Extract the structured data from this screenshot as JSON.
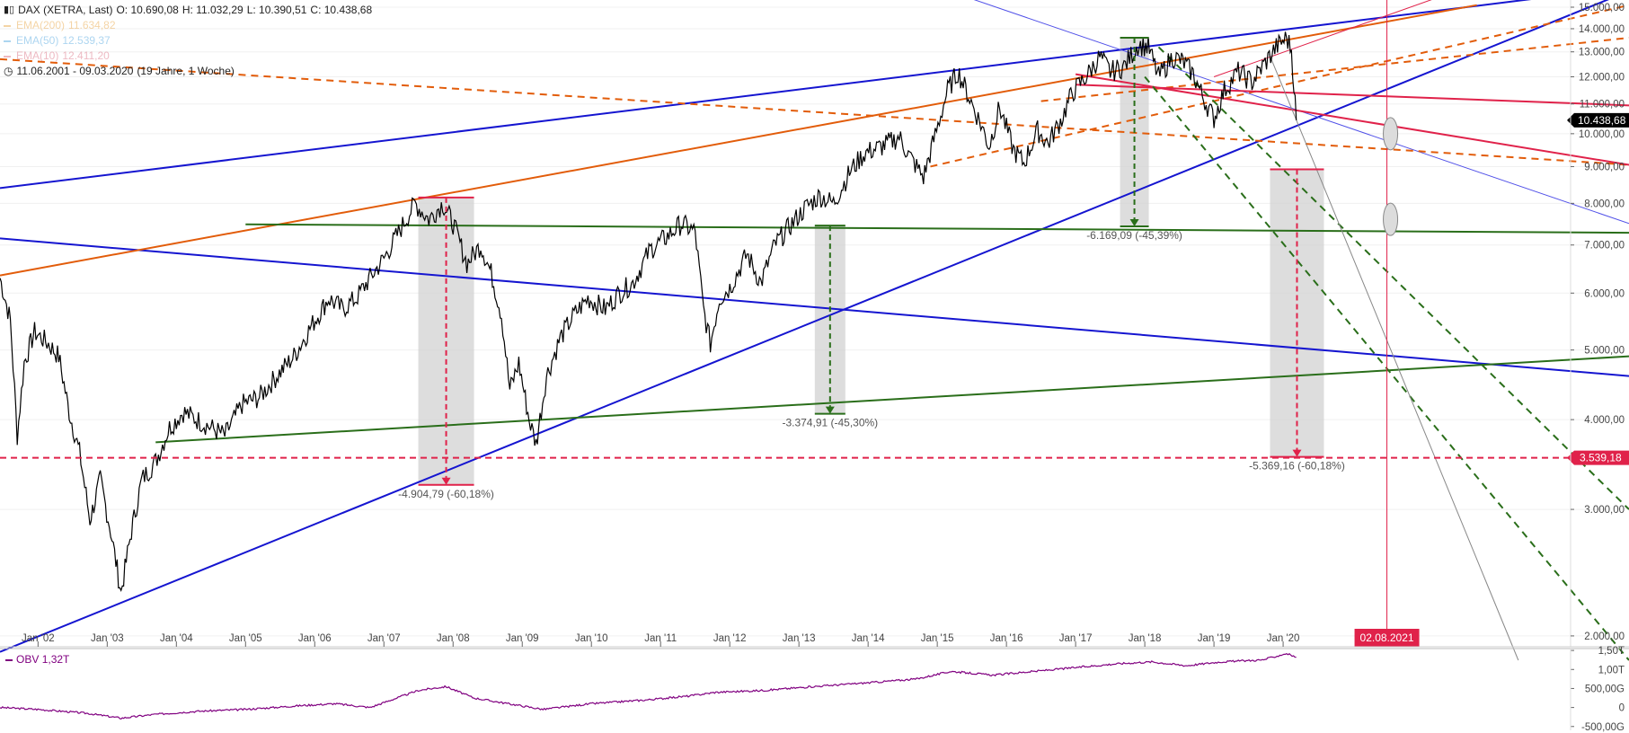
{
  "header": {
    "symbol": "DAX (XETRA, Last)",
    "open": "O: 10.690,08",
    "high": "H: 11.032,29",
    "low": "L: 10.390,51",
    "close": "C: 10.438,68",
    "legend": [
      {
        "label": "EMA(200)",
        "value": "11.634,82",
        "color": "#e8a13a"
      },
      {
        "label": "EMA(50)",
        "value": "12.539,37",
        "color": "#4aa3df"
      },
      {
        "label": "EMA(10)",
        "value": "12.411,20",
        "color": "#d9667a"
      }
    ],
    "range": "11.06.2001 - 09.03.2020",
    "range_detail": "(19 Jahre, 1 Woche)"
  },
  "chart_data": {
    "type": "line",
    "title": "DAX (XETRA, Last)",
    "y_scale": "log",
    "ylim": [
      1850,
      15000
    ],
    "x_range": [
      "2001-06-11",
      "2020-03-09"
    ],
    "x_ticks": [
      "Jan '02",
      "Jan '03",
      "Jan '04",
      "Jan '05",
      "Jan '06",
      "Jan '07",
      "Jan '08",
      "Jan '09",
      "Jan '10",
      "Jan '11",
      "Jan '12",
      "Jan '13",
      "Jan '14",
      "Jan '15",
      "Jan '16",
      "Jan '17",
      "Jan '18",
      "Jan '19",
      "Jan '20"
    ],
    "y_ticks": [
      {
        "v": 15000,
        "label": "15.000,00"
      },
      {
        "v": 14000,
        "label": "14.000,00"
      },
      {
        "v": 13000,
        "label": "13.000,00"
      },
      {
        "v": 12000,
        "label": "12.000,00"
      },
      {
        "v": 11000,
        "label": "11.000,00"
      },
      {
        "v": 10000,
        "label": "10.000,00"
      },
      {
        "v": 9000,
        "label": "9.000,00"
      },
      {
        "v": 8000,
        "label": "8.000,00"
      },
      {
        "v": 7000,
        "label": "7.000,00"
      },
      {
        "v": 6000,
        "label": "6.000,00"
      },
      {
        "v": 5000,
        "label": "5.000,00"
      },
      {
        "v": 4000,
        "label": "4.000,00"
      },
      {
        "v": 3000,
        "label": "3.000,00"
      },
      {
        "v": 2000,
        "label": "2.000,00"
      }
    ],
    "series": [
      {
        "name": "DAX (XETRA, Last)",
        "color": "#000000",
        "points": [
          [
            2001.45,
            6300
          ],
          [
            2001.6,
            5500
          ],
          [
            2001.7,
            3800
          ],
          [
            2001.8,
            4800
          ],
          [
            2001.95,
            5300
          ],
          [
            2002.15,
            5100
          ],
          [
            2002.3,
            4900
          ],
          [
            2002.45,
            4100
          ],
          [
            2002.6,
            3600
          ],
          [
            2002.75,
            2900
          ],
          [
            2002.9,
            3300
          ],
          [
            2003.05,
            2800
          ],
          [
            2003.2,
            2300
          ],
          [
            2003.35,
            2800
          ],
          [
            2003.5,
            3300
          ],
          [
            2003.7,
            3500
          ],
          [
            2003.9,
            3900
          ],
          [
            2004.1,
            4100
          ],
          [
            2004.3,
            4000
          ],
          [
            2004.5,
            3900
          ],
          [
            2004.7,
            3800
          ],
          [
            2004.95,
            4200
          ],
          [
            2005.2,
            4300
          ],
          [
            2005.45,
            4600
          ],
          [
            2005.7,
            4900
          ],
          [
            2005.95,
            5400
          ],
          [
            2006.2,
            5900
          ],
          [
            2006.4,
            5700
          ],
          [
            2006.6,
            5900
          ],
          [
            2006.8,
            6300
          ],
          [
            2007.0,
            6700
          ],
          [
            2007.25,
            7400
          ],
          [
            2007.45,
            8000
          ],
          [
            2007.65,
            7600
          ],
          [
            2007.85,
            8000
          ],
          [
            2008.0,
            7500
          ],
          [
            2008.2,
            6600
          ],
          [
            2008.4,
            7000
          ],
          [
            2008.55,
            6400
          ],
          [
            2008.7,
            5600
          ],
          [
            2008.82,
            4400
          ],
          [
            2008.95,
            4800
          ],
          [
            2009.1,
            4000
          ],
          [
            2009.2,
            3700
          ],
          [
            2009.35,
            4600
          ],
          [
            2009.55,
            5200
          ],
          [
            2009.75,
            5600
          ],
          [
            2009.95,
            5900
          ],
          [
            2010.2,
            5700
          ],
          [
            2010.4,
            6000
          ],
          [
            2010.6,
            6200
          ],
          [
            2010.85,
            6900
          ],
          [
            2011.1,
            7200
          ],
          [
            2011.3,
            7500
          ],
          [
            2011.5,
            7300
          ],
          [
            2011.62,
            5700
          ],
          [
            2011.72,
            5100
          ],
          [
            2011.85,
            5900
          ],
          [
            2012.0,
            6100
          ],
          [
            2012.25,
            6800
          ],
          [
            2012.45,
            6200
          ],
          [
            2012.65,
            7000
          ],
          [
            2012.9,
            7500
          ],
          [
            2013.1,
            7900
          ],
          [
            2013.3,
            8200
          ],
          [
            2013.5,
            8000
          ],
          [
            2013.75,
            8900
          ],
          [
            2013.95,
            9400
          ],
          [
            2014.2,
            9600
          ],
          [
            2014.45,
            9900
          ],
          [
            2014.6,
            9300
          ],
          [
            2014.8,
            8700
          ],
          [
            2014.95,
            9800
          ],
          [
            2015.15,
            11500
          ],
          [
            2015.3,
            12200
          ],
          [
            2015.45,
            11300
          ],
          [
            2015.65,
            10200
          ],
          [
            2015.75,
            9600
          ],
          [
            2015.9,
            10900
          ],
          [
            2016.1,
            9500
          ],
          [
            2016.25,
            9100
          ],
          [
            2016.45,
            10100
          ],
          [
            2016.6,
            9700
          ],
          [
            2016.8,
            10500
          ],
          [
            2016.95,
            11400
          ],
          [
            2017.15,
            12000
          ],
          [
            2017.35,
            12800
          ],
          [
            2017.5,
            12200
          ],
          [
            2017.7,
            12400
          ],
          [
            2017.9,
            13300
          ],
          [
            2018.05,
            13200
          ],
          [
            2018.2,
            12000
          ],
          [
            2018.4,
            12800
          ],
          [
            2018.55,
            12600
          ],
          [
            2018.7,
            12100
          ],
          [
            2018.85,
            11200
          ],
          [
            2019.0,
            10500
          ],
          [
            2019.15,
            11500
          ],
          [
            2019.35,
            12200
          ],
          [
            2019.55,
            11800
          ],
          [
            2019.7,
            12400
          ],
          [
            2019.9,
            13200
          ],
          [
            2020.05,
            13600
          ],
          [
            2020.12,
            13100
          ],
          [
            2020.19,
            10438.68
          ]
        ]
      },
      {
        "name": "OBV",
        "color": "#800080",
        "last_label": "1,32T",
        "y_ticks": [
          {
            "v": 1.5,
            "label": "1,50T"
          },
          {
            "v": 1.0,
            "label": "1,00T"
          },
          {
            "v": 0.5,
            "label": "500,00G"
          },
          {
            "v": 0.0,
            "label": "0"
          },
          {
            "v": -0.5,
            "label": "-500,00G"
          }
        ],
        "points": [
          [
            2001.45,
            0.0
          ],
          [
            2002.0,
            -0.05
          ],
          [
            2002.7,
            -0.15
          ],
          [
            2003.2,
            -0.28
          ],
          [
            2003.7,
            -0.18
          ],
          [
            2004.3,
            -0.1
          ],
          [
            2005.0,
            -0.05
          ],
          [
            2005.8,
            0.05
          ],
          [
            2006.3,
            0.1
          ],
          [
            2006.8,
            0.0
          ],
          [
            2007.5,
            0.45
          ],
          [
            2007.9,
            0.55
          ],
          [
            2008.3,
            0.25
          ],
          [
            2008.8,
            0.1
          ],
          [
            2009.3,
            -0.05
          ],
          [
            2010.0,
            0.1
          ],
          [
            2010.8,
            0.2
          ],
          [
            2011.4,
            0.3
          ],
          [
            2011.8,
            0.4
          ],
          [
            2012.5,
            0.45
          ],
          [
            2013.2,
            0.55
          ],
          [
            2014.0,
            0.65
          ],
          [
            2014.7,
            0.75
          ],
          [
            2015.2,
            0.95
          ],
          [
            2015.8,
            0.85
          ],
          [
            2016.4,
            0.95
          ],
          [
            2017.0,
            1.05
          ],
          [
            2017.6,
            1.15
          ],
          [
            2018.1,
            1.2
          ],
          [
            2018.6,
            1.1
          ],
          [
            2019.1,
            1.2
          ],
          [
            2019.7,
            1.25
          ],
          [
            2020.05,
            1.42
          ],
          [
            2020.19,
            1.32
          ]
        ]
      }
    ],
    "annotations": {
      "drawdowns": [
        {
          "label": "-4.904,79 (-60,18%)",
          "from_x": 2007.9,
          "from_y": 8150,
          "to_y": 3245
        },
        {
          "label": "-3.374,91 (-45,30%)",
          "from_x": 2013.45,
          "from_y": 7450,
          "to_y": 4075
        },
        {
          "label": "-6.169,09 (-45,39%)",
          "from_x": 2017.85,
          "from_y": 13600,
          "to_y": 7430
        },
        {
          "label": "-5.369,16 (-60,18%)",
          "from_x": 2020.2,
          "from_y": 8920,
          "to_y": 3550
        }
      ],
      "horizontal_level": {
        "value": 3539.18,
        "label": "3.539,18",
        "color": "#e0224a"
      },
      "current_price_label": "10.438,68",
      "vertical_marker": {
        "x": 2021.5,
        "label": "02.08.2021",
        "color": "#e0224a"
      }
    },
    "trend_lines": [
      {
        "color": "#1515d0",
        "width": 2,
        "dash": false,
        "points": [
          [
            2001.45,
            8400
          ],
          [
            2025.0,
            16000
          ]
        ]
      },
      {
        "color": "#1515d0",
        "width": 2,
        "dash": false,
        "points": [
          [
            2001.45,
            1900
          ],
          [
            2025.0,
            15800
          ]
        ]
      },
      {
        "color": "#1515d0",
        "width": 2,
        "dash": false,
        "points": [
          [
            2001.45,
            7150
          ],
          [
            2025.0,
            4600
          ]
        ]
      },
      {
        "color": "#5050e8",
        "width": 1,
        "dash": false,
        "points": [
          [
            2015.0,
            16000
          ],
          [
            2025.0,
            7500
          ]
        ]
      },
      {
        "color": "#e25c0a",
        "width": 2,
        "dash": false,
        "points": [
          [
            2001.45,
            6350
          ],
          [
            2022.8,
            15100
          ]
        ]
      },
      {
        "color": "#e25c0a",
        "width": 2,
        "dash": true,
        "points": [
          [
            2001.45,
            12700
          ],
          [
            2025.0,
            9050
          ]
        ]
      },
      {
        "color": "#e25c0a",
        "width": 2,
        "dash": true,
        "points": [
          [
            2014.9,
            9000
          ],
          [
            2025.0,
            15100
          ]
        ]
      },
      {
        "color": "#e25c0a",
        "width": 2,
        "dash": true,
        "points": [
          [
            2016.5,
            11100
          ],
          [
            2025.0,
            13600
          ]
        ]
      },
      {
        "color": "#e0224a",
        "width": 2,
        "dash": false,
        "points": [
          [
            2017.0,
            12100
          ],
          [
            2025.0,
            9050
          ]
        ]
      },
      {
        "color": "#e0224a",
        "width": 2,
        "dash": false,
        "points": [
          [
            2017.0,
            11700
          ],
          [
            2025.0,
            10950
          ]
        ]
      },
      {
        "color": "#e0224a",
        "width": 1,
        "dash": false,
        "points": [
          [
            2019.0,
            12000
          ],
          [
            2022.5,
            15800
          ]
        ]
      },
      {
        "color": "#2a6e1a",
        "width": 2,
        "dash": false,
        "points": [
          [
            2005.0,
            7480
          ],
          [
            2025.0,
            7280
          ]
        ]
      },
      {
        "color": "#2a6e1a",
        "width": 2,
        "dash": false,
        "points": [
          [
            2003.7,
            3720
          ],
          [
            2025.0,
            4900
          ]
        ]
      },
      {
        "color": "#2a6e1a",
        "width": 2,
        "dash": true,
        "points": [
          [
            2018.0,
            12000
          ],
          [
            2025.0,
            1850
          ]
        ]
      },
      {
        "color": "#2a6e1a",
        "width": 2,
        "dash": true,
        "points": [
          [
            2018.2,
            13200
          ],
          [
            2025.0,
            3000
          ]
        ]
      },
      {
        "color": "#888888",
        "width": 1,
        "dash": false,
        "points": [
          [
            2019.8,
            12900
          ],
          [
            2023.4,
            1850
          ]
        ]
      }
    ]
  }
}
